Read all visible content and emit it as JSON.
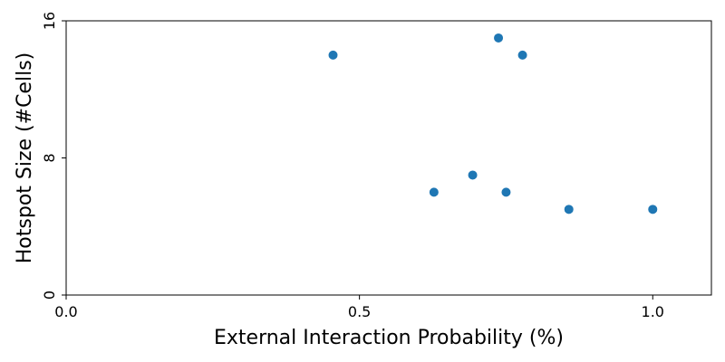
{
  "chart_data": {
    "type": "scatter",
    "title": "",
    "xlabel": "External Interaction Probability (%)",
    "ylabel": "Hotspot Size (#Cells)",
    "xlim": [
      0.0,
      1.1
    ],
    "ylim": [
      0,
      16
    ],
    "xticks": [
      0.0,
      0.5,
      1.0
    ],
    "xtick_labels": [
      "0.0",
      "0.5",
      "1.0"
    ],
    "yticks": [
      0,
      8,
      16
    ],
    "ytick_labels": [
      "0",
      "8",
      "16"
    ],
    "grid": false,
    "marker_color": "#1f77b4",
    "series": [
      {
        "x": [
          0.455,
          0.627,
          0.693,
          0.737,
          0.75,
          0.778,
          0.857,
          1.0
        ],
        "y": [
          14,
          6,
          7,
          15,
          6,
          14,
          5,
          5
        ]
      }
    ]
  }
}
